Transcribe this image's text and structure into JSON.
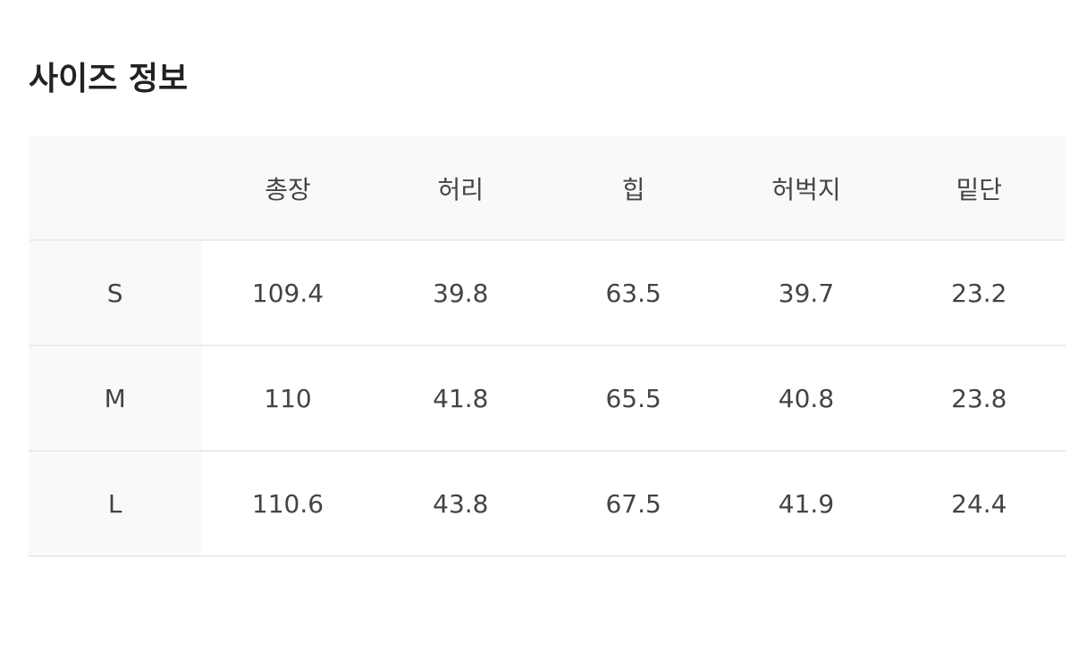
{
  "title": "사이즈 정보",
  "table": {
    "headers": [
      "",
      "총장",
      "허리",
      "힙",
      "허벅지",
      "밑단"
    ],
    "rows": [
      {
        "size": "S",
        "values": [
          "109.4",
          "39.8",
          "63.5",
          "39.7",
          "23.2"
        ]
      },
      {
        "size": "M",
        "values": [
          "110",
          "41.8",
          "65.5",
          "40.8",
          "23.8"
        ]
      },
      {
        "size": "L",
        "values": [
          "110.6",
          "43.8",
          "67.5",
          "41.9",
          "24.4"
        ]
      }
    ]
  }
}
